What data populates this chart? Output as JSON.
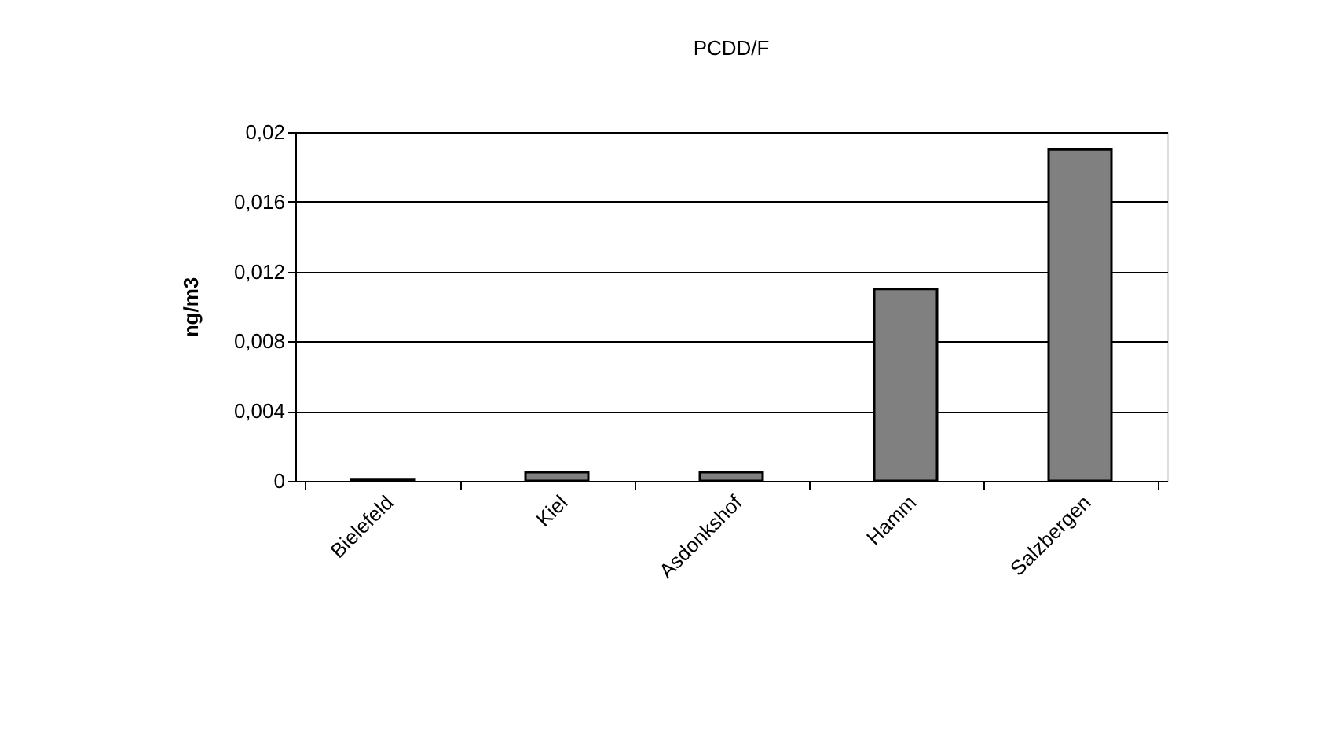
{
  "chart_data": {
    "type": "bar",
    "title": "PCDD/F",
    "ylabel": "ng/m3",
    "categories": [
      "Bielefeld",
      "Kiel",
      "Asdonkshof",
      "Hamm",
      "Salzbergen"
    ],
    "values": [
      0.0001,
      0.0005,
      0.0005,
      0.011,
      0.019
    ],
    "color": "#808080",
    "ylim": [
      0,
      0.02
    ],
    "yticks": [
      {
        "value": 0,
        "label": "0"
      },
      {
        "value": 0.004,
        "label": "0,004"
      },
      {
        "value": 0.008,
        "label": "0,008"
      },
      {
        "value": 0.012,
        "label": "0,012"
      },
      {
        "value": 0.016,
        "label": "0,016"
      },
      {
        "value": 0.02,
        "label": "0,02"
      }
    ],
    "grid": "y"
  }
}
